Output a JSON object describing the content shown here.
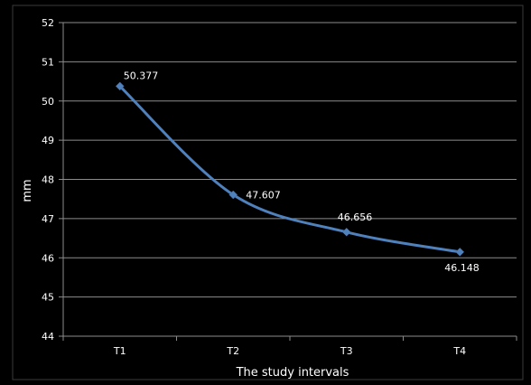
{
  "chart_data": {
    "type": "line",
    "categories": [
      "T1",
      "T2",
      "T3",
      "T4"
    ],
    "series": [
      {
        "values": [
          50.377,
          47.607,
          46.656,
          46.148
        ],
        "data_labels": [
          "50.377",
          "47.607",
          "46.656",
          "46.148"
        ],
        "color": "#4f81bd",
        "marker": "diamond",
        "smooth": true
      }
    ],
    "ylim": [
      44,
      52
    ],
    "y_ticks": [
      44,
      45,
      46,
      47,
      48,
      49,
      50,
      51,
      52
    ],
    "y_tick_labels": [
      "44",
      "45",
      "46",
      "47",
      "48",
      "49",
      "50",
      "51",
      "52"
    ],
    "xlabel": "The study intervals",
    "ylabel": "mm",
    "grid": true,
    "legend": "none"
  },
  "colors": {
    "background": "#000000",
    "gridline": "#8c8c8c",
    "axis": "#8c8c8c",
    "text": "#ffffff",
    "series": "#4f81bd"
  }
}
